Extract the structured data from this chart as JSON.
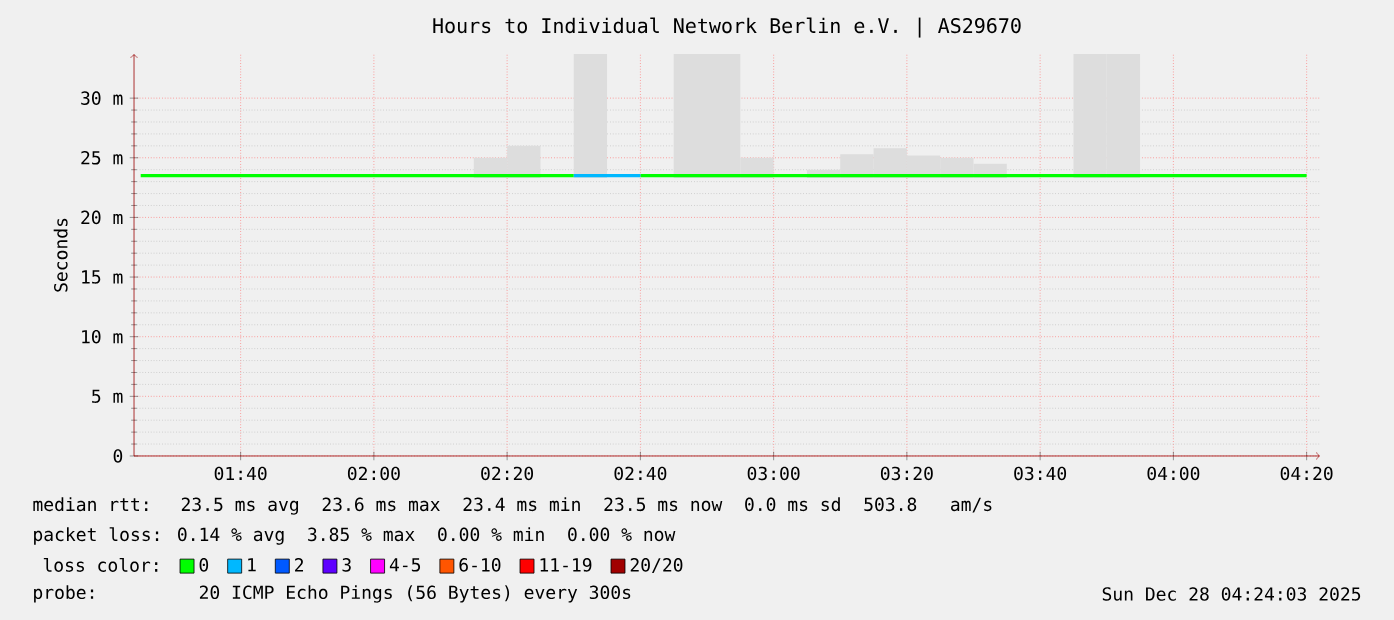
{
  "chart_data": {
    "type": "line",
    "title": "Hours to Individual Network Berlin e.V. | AS29670",
    "ylabel": "Seconds",
    "xlim": [
      1.4,
      4.3667
    ],
    "ylim": [
      0,
      33.7
    ],
    "xticks": [
      {
        "value": 1.6667,
        "label": "01:40"
      },
      {
        "value": 2.0,
        "label": "02:00"
      },
      {
        "value": 2.3333,
        "label": "02:20"
      },
      {
        "value": 2.6667,
        "label": "02:40"
      },
      {
        "value": 3.0,
        "label": "03:00"
      },
      {
        "value": 3.3333,
        "label": "03:20"
      },
      {
        "value": 3.6667,
        "label": "03:40"
      },
      {
        "value": 4.0,
        "label": "04:00"
      },
      {
        "value": 4.3333,
        "label": "04:20"
      }
    ],
    "yticks": [
      0,
      {
        "value": 5,
        "label": "5 m"
      },
      {
        "value": 10,
        "label": "10 m"
      },
      {
        "value": 15,
        "label": "15 m"
      },
      {
        "value": 20,
        "label": "20 m"
      },
      {
        "value": 25,
        "label": "25 m"
      },
      {
        "value": 30,
        "label": "30 m"
      }
    ],
    "grid": true,
    "legend": "bottom",
    "legend_title": "loss color:",
    "series": [
      {
        "type": "bar",
        "color": "#dddddd",
        "x": [
          2.2917,
          2.375,
          2.5417,
          2.7917,
          2.875,
          2.9583,
          3.125,
          3.2083,
          3.2917,
          3.375,
          3.4583,
          3.5417,
          3.7917,
          3.875
        ],
        "base": [
          23.3,
          23.3,
          23.3,
          23.3,
          23.3,
          23.3,
          23.3,
          23.3,
          23.3,
          23.3,
          23.3,
          23.3,
          23.3,
          23.3
        ],
        "values": [
          1.7,
          2.7,
          10.4,
          10.4,
          10.4,
          1.7,
          0.7,
          2.0,
          2.5,
          1.9,
          1.7,
          1.2,
          10.4,
          10.4
        ]
      },
      {
        "name": "0",
        "color": "#00ff00",
        "x": [
          1.4167,
          1.5,
          1.5833,
          1.6667,
          1.75,
          1.8333,
          1.9167,
          2.0,
          2.0833,
          2.1667,
          2.25,
          2.3333,
          2.4167,
          2.5,
          2.5833,
          2.6667,
          2.75,
          2.8333,
          2.9167,
          3.0,
          3.0833,
          3.1667,
          3.25,
          3.3333,
          3.4167,
          3.5,
          3.5833,
          3.6667,
          3.75,
          3.8333,
          3.9167,
          4.0,
          4.0833,
          4.1667,
          4.25,
          4.3333
        ],
        "values": [
          23.5,
          23.5,
          23.5,
          23.5,
          23.5,
          23.5,
          23.5,
          23.5,
          23.5,
          23.5,
          23.5,
          23.5,
          23.5,
          23.5,
          null,
          23.5,
          23.5,
          23.5,
          23.5,
          23.5,
          23.5,
          23.5,
          23.5,
          23.5,
          23.5,
          23.5,
          23.5,
          23.5,
          23.5,
          23.5,
          23.5,
          23.5,
          23.5,
          23.5,
          23.5,
          23.5
        ]
      },
      {
        "name": "1",
        "color": "#00b8ff",
        "x": [
          2.5,
          2.5833,
          2.6667
        ],
        "values": [
          23.5,
          23.5,
          23.5
        ]
      },
      {
        "name": "2",
        "color": "#0059ff"
      },
      {
        "name": "3",
        "color": "#5e00ff"
      },
      {
        "name": "4-5",
        "color": "#ff00ff"
      },
      {
        "name": "6-10",
        "color": "#ff5500"
      },
      {
        "name": "11-19",
        "color": "#ff0000"
      },
      {
        "name": "20/20",
        "color": "#a10000"
      }
    ],
    "annotations": [
      "median rtt:  23.5 ms avg  23.6 ms max  23.4 ms min  23.5 ms now  0.0 ms sd  503.8   am/s",
      "packet loss: 0.14 % avg  3.85 % max  0.00 % min  0.00 % now",
      "probe:       20 ICMP Echo Pings (56 Bytes) every 300s",
      "Sun Dec 28 04:24:03 2025"
    ]
  }
}
